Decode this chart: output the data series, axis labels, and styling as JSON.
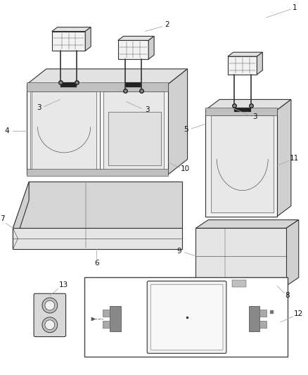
{
  "bg_color": "#ffffff",
  "line_color": "#333333",
  "line_color_light": "#999999",
  "figsize": [
    4.38,
    5.33
  ],
  "dpi": 100,
  "label_fs": 7.5,
  "lw": 0.8,
  "lw_thin": 0.4,
  "lw_thick": 1.2,
  "fill_front": "#f2f2f2",
  "fill_top": "#e2e2e2",
  "fill_side": "#d0d0d0",
  "fill_inner": "#e8e8e8",
  "fill_cushion": "#e5e5e5",
  "fill_cushion_top": "#d5d5d5",
  "fill_dark": "#c0c0c0"
}
